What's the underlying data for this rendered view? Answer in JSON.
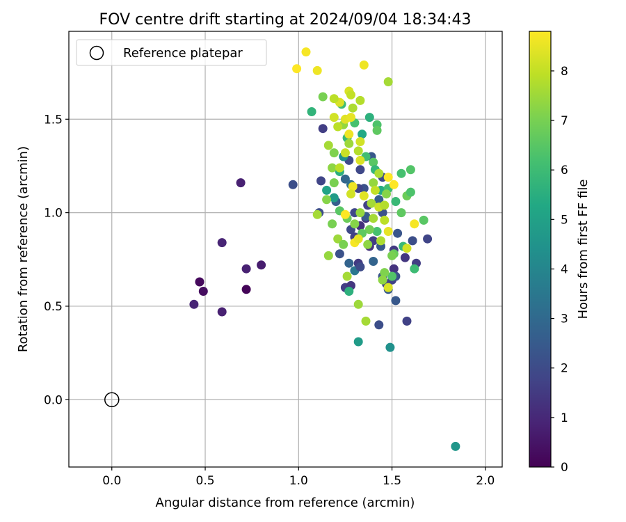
{
  "chart_data": {
    "type": "scatter",
    "title": "FOV centre drift starting at 2024/09/04 18:34:43",
    "xlabel": "Angular distance from reference (arcmin)",
    "ylabel": "Rotation from reference (arcmin)",
    "xlim": [
      -0.23,
      2.09
    ],
    "ylim": [
      -0.36,
      1.97
    ],
    "x_ticks": [
      0.0,
      0.5,
      1.0,
      1.5,
      2.0
    ],
    "x_tick_labels": [
      "0.0",
      "0.5",
      "1.0",
      "1.5",
      "2.0"
    ],
    "y_ticks": [
      0.0,
      0.5,
      1.0,
      1.5
    ],
    "y_tick_labels": [
      "0.0",
      "0.5",
      "1.0",
      "1.5"
    ],
    "grid": true,
    "legend": {
      "position": "top-left",
      "entries": [
        {
          "label": "Reference platepar",
          "marker": "open-circle",
          "x": 0.0,
          "y": 0.0
        }
      ]
    },
    "colorbar": {
      "label": "Hours from first FF file",
      "colormap": "viridis",
      "range": [
        0,
        8.8
      ],
      "ticks": [
        0,
        1,
        2,
        3,
        4,
        5,
        6,
        7,
        8
      ],
      "tick_labels": [
        "0",
        "1",
        "2",
        "3",
        "4",
        "5",
        "6",
        "7",
        "8"
      ]
    },
    "series": [
      {
        "points": [
          [
            0.47,
            0.63,
            0.2
          ],
          [
            0.49,
            0.58,
            0.3
          ],
          [
            0.72,
            0.59,
            0.1
          ],
          [
            0.44,
            0.51,
            0.9
          ],
          [
            0.59,
            0.47,
            0.8
          ],
          [
            0.59,
            0.84,
            0.9
          ],
          [
            0.72,
            0.7,
            0.8
          ],
          [
            0.8,
            0.72,
            0.7
          ],
          [
            0.69,
            1.16,
            0.8
          ],
          [
            0.97,
            1.15,
            2.1
          ],
          [
            1.13,
            1.45,
            1.6
          ],
          [
            1.12,
            1.17,
            1.8
          ],
          [
            1.11,
            1.0,
            2.1
          ],
          [
            1.2,
            1.06,
            2.6
          ],
          [
            1.22,
            0.78,
            2.2
          ],
          [
            1.25,
            0.6,
            1.6
          ],
          [
            1.28,
            0.61,
            1.4
          ],
          [
            1.27,
            0.73,
            2.8
          ],
          [
            1.3,
            0.69,
            3.5
          ],
          [
            1.32,
            0.73,
            1.5
          ],
          [
            1.33,
            0.71,
            2.0
          ],
          [
            1.28,
            0.91,
            1.9
          ],
          [
            1.3,
            0.87,
            1.7
          ],
          [
            1.33,
            0.93,
            1.2
          ],
          [
            1.36,
            0.97,
            1.4
          ],
          [
            1.38,
            0.82,
            1.3
          ],
          [
            1.4,
            0.85,
            1.6
          ],
          [
            1.4,
            0.74,
            2.8
          ],
          [
            1.44,
            0.82,
            2.4
          ],
          [
            1.45,
            0.66,
            2.3
          ],
          [
            1.47,
            0.62,
            1.8
          ],
          [
            1.48,
            0.59,
            2.5
          ],
          [
            1.5,
            0.64,
            1.7
          ],
          [
            1.51,
            0.7,
            1.3
          ],
          [
            1.52,
            0.66,
            2.2
          ],
          [
            1.51,
            0.8,
            1.5
          ],
          [
            1.52,
            0.53,
            2.4
          ],
          [
            1.58,
            0.42,
            1.7
          ],
          [
            1.61,
            0.85,
            2.1
          ],
          [
            1.57,
            0.76,
            1.4
          ],
          [
            1.63,
            0.73,
            1.6
          ],
          [
            1.69,
            0.86,
            1.8
          ],
          [
            1.53,
            0.89,
            2.3
          ],
          [
            1.45,
            1.0,
            2.2
          ],
          [
            1.43,
            1.07,
            2.6
          ],
          [
            1.45,
            1.19,
            2.0
          ],
          [
            1.35,
            1.13,
            2.2
          ],
          [
            1.33,
            1.23,
            1.9
          ],
          [
            1.37,
            1.04,
            1.7
          ],
          [
            1.39,
            1.3,
            2.4
          ],
          [
            1.27,
            1.28,
            2.0
          ],
          [
            1.25,
            1.18,
            2.9
          ],
          [
            1.28,
            1.15,
            3.2
          ],
          [
            1.32,
            1.13,
            1.8
          ],
          [
            1.36,
            0.98,
            2.5
          ],
          [
            1.3,
            1.0,
            1.9
          ],
          [
            1.43,
            0.4,
            2.1
          ],
          [
            1.32,
            0.31,
            4.8
          ],
          [
            1.49,
            0.28,
            4.4
          ],
          [
            1.84,
            -0.25,
            4.6
          ],
          [
            1.27,
            0.58,
            5.6
          ],
          [
            1.07,
            1.54,
            5.7
          ],
          [
            1.15,
            1.12,
            5.1
          ],
          [
            1.19,
            1.08,
            4.8
          ],
          [
            1.22,
            1.22,
            5.5
          ],
          [
            1.24,
            1.3,
            4.4
          ],
          [
            1.26,
            1.4,
            5.9
          ],
          [
            1.23,
            1.58,
            6.0
          ],
          [
            1.3,
            1.48,
            6.2
          ],
          [
            1.34,
            1.42,
            5.3
          ],
          [
            1.38,
            1.51,
            5.6
          ],
          [
            1.42,
            1.47,
            6.3
          ],
          [
            1.42,
            1.44,
            6.6
          ],
          [
            1.36,
            1.3,
            6.1
          ],
          [
            1.4,
            1.27,
            6.5
          ],
          [
            1.41,
            1.23,
            5.8
          ],
          [
            1.44,
            1.12,
            5.4
          ],
          [
            1.48,
            1.13,
            6.1
          ],
          [
            1.52,
            1.06,
            5.9
          ],
          [
            1.55,
            1.0,
            6.6
          ],
          [
            1.55,
            1.21,
            6.2
          ],
          [
            1.6,
            1.23,
            6.4
          ],
          [
            1.58,
            1.09,
            6.8
          ],
          [
            1.6,
            1.11,
            6.3
          ],
          [
            1.67,
            0.96,
            6.5
          ],
          [
            1.62,
            0.7,
            6.0
          ],
          [
            1.56,
            0.82,
            5.9
          ],
          [
            1.5,
            0.66,
            6.4
          ],
          [
            1.51,
            0.78,
            6.7
          ],
          [
            1.46,
            0.68,
            7.1
          ],
          [
            1.45,
            0.64,
            7.3
          ],
          [
            1.42,
            0.9,
            6.2
          ],
          [
            1.38,
            0.91,
            6.9
          ],
          [
            1.34,
            0.89,
            6.6
          ],
          [
            1.3,
            0.94,
            7.2
          ],
          [
            1.26,
            0.97,
            6.8
          ],
          [
            1.22,
            1.01,
            6.5
          ],
          [
            1.18,
            0.94,
            7.0
          ],
          [
            1.21,
            0.86,
            7.5
          ],
          [
            1.24,
            0.83,
            7.0
          ],
          [
            1.26,
            0.66,
            7.6
          ],
          [
            1.16,
            0.77,
            7.4
          ],
          [
            1.1,
            0.99,
            7.6
          ],
          [
            1.15,
            1.07,
            7.2
          ],
          [
            1.19,
            1.16,
            7.0
          ],
          [
            1.18,
            1.24,
            7.3
          ],
          [
            1.22,
            1.24,
            7.9
          ],
          [
            1.16,
            1.36,
            7.6
          ],
          [
            1.19,
            1.32,
            7.1
          ],
          [
            1.25,
            1.32,
            8.1
          ],
          [
            1.27,
            1.37,
            7.5
          ],
          [
            1.32,
            1.33,
            7.8
          ],
          [
            1.24,
            1.47,
            7.4
          ],
          [
            1.21,
            1.46,
            7.9
          ],
          [
            1.19,
            1.51,
            8.2
          ],
          [
            1.25,
            1.5,
            8.4
          ],
          [
            1.28,
            1.51,
            8.5
          ],
          [
            1.27,
            1.42,
            8.6
          ],
          [
            1.33,
            1.38,
            8.2
          ],
          [
            1.29,
            1.56,
            7.7
          ],
          [
            1.27,
            1.65,
            8.3
          ],
          [
            1.28,
            1.63,
            8.0
          ],
          [
            1.33,
            1.6,
            7.8
          ],
          [
            1.22,
            1.59,
            8.3
          ],
          [
            1.19,
            1.61,
            7.9
          ],
          [
            1.13,
            1.62,
            7.0
          ],
          [
            1.48,
            1.7,
            7.6
          ],
          [
            1.35,
            1.79,
            8.6
          ],
          [
            0.99,
            1.77,
            8.8
          ],
          [
            1.04,
            1.86,
            8.7
          ],
          [
            1.1,
            1.76,
            8.6
          ],
          [
            1.29,
            1.14,
            8.6
          ],
          [
            1.33,
            1.28,
            8.3
          ],
          [
            1.35,
            1.09,
            8.4
          ],
          [
            1.39,
            1.05,
            7.6
          ],
          [
            1.43,
            1.21,
            7.7
          ],
          [
            1.43,
            1.03,
            8.1
          ],
          [
            1.46,
            0.96,
            7.9
          ],
          [
            1.48,
            1.19,
            8.8
          ],
          [
            1.51,
            1.15,
            8.9
          ],
          [
            1.47,
            1.1,
            7.2
          ],
          [
            1.48,
            0.9,
            8.5
          ],
          [
            1.48,
            0.6,
            8.3
          ],
          [
            1.5,
            0.77,
            7.0
          ],
          [
            1.58,
            0.81,
            8.2
          ],
          [
            1.62,
            0.94,
            8.7
          ],
          [
            1.33,
            1.0,
            7.4
          ],
          [
            1.3,
            0.84,
            8.7
          ],
          [
            1.32,
            0.86,
            8.5
          ],
          [
            1.37,
            0.83,
            7.3
          ],
          [
            1.4,
            0.97,
            7.6
          ],
          [
            1.28,
            1.1,
            8.2
          ],
          [
            1.25,
            0.99,
            8.8
          ],
          [
            1.32,
            0.51,
            7.5
          ],
          [
            1.36,
            0.42,
            7.6
          ],
          [
            1.4,
            1.16,
            7.4
          ],
          [
            1.41,
            1.12,
            8.0
          ],
          [
            1.46,
            1.04,
            7.8
          ],
          [
            1.44,
            0.85,
            7.7
          ]
        ]
      }
    ]
  }
}
